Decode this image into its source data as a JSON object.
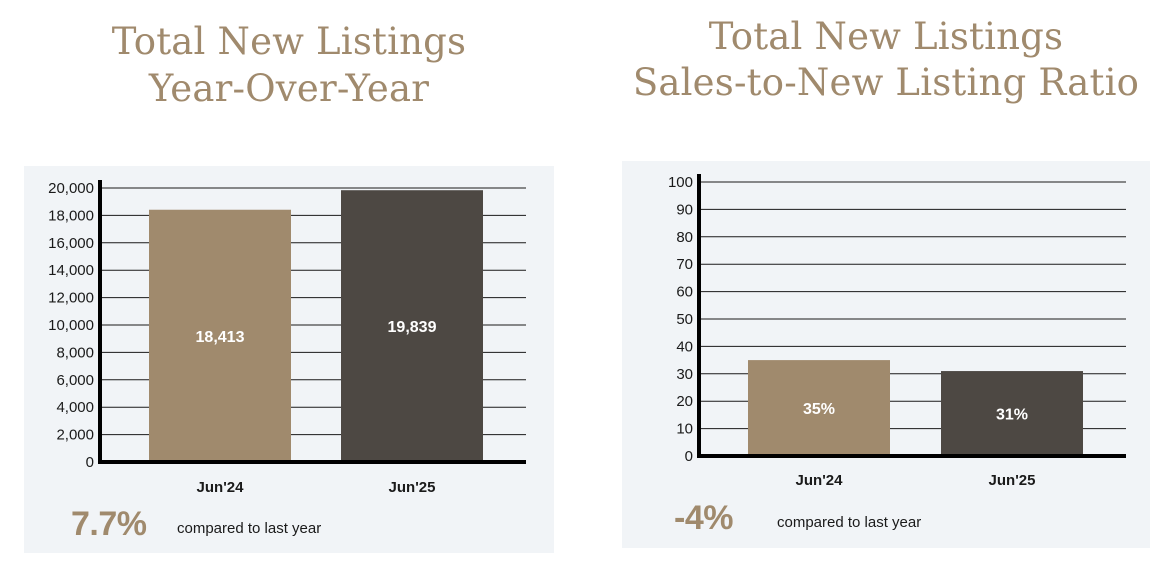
{
  "chart_data": [
    {
      "type": "bar",
      "title": [
        "Total New Listings",
        "Year-Over-Year"
      ],
      "categories": [
        "Jun'24",
        "Jun'25"
      ],
      "values": [
        18413,
        19839
      ],
      "value_labels": [
        "18,413",
        "19,839"
      ],
      "ylim": [
        0,
        20000
      ],
      "yticks": [
        "0",
        "2,000",
        "4,000",
        "6,000",
        "8,000",
        "10,000",
        "12,000",
        "14,000",
        "16,000",
        "18,000",
        "20,000"
      ],
      "colors": [
        "#a08a6d",
        "#4d4843"
      ],
      "grid": true,
      "change": "7.7%",
      "change_text": "compared to last year"
    },
    {
      "type": "bar",
      "title": [
        "Total New Listings",
        "Sales-to-New Listing Ratio"
      ],
      "categories": [
        "Jun'24",
        "Jun'25"
      ],
      "values": [
        35,
        31
      ],
      "value_labels": [
        "35%",
        "31%"
      ],
      "ylim": [
        0,
        100
      ],
      "yticks": [
        "0",
        "10",
        "20",
        "30",
        "40",
        "50",
        "60",
        "70",
        "80",
        "90",
        "100"
      ],
      "colors": [
        "#a08a6d",
        "#4d4843"
      ],
      "grid": true,
      "change": "-4%",
      "change_text": "compared to last year"
    }
  ]
}
